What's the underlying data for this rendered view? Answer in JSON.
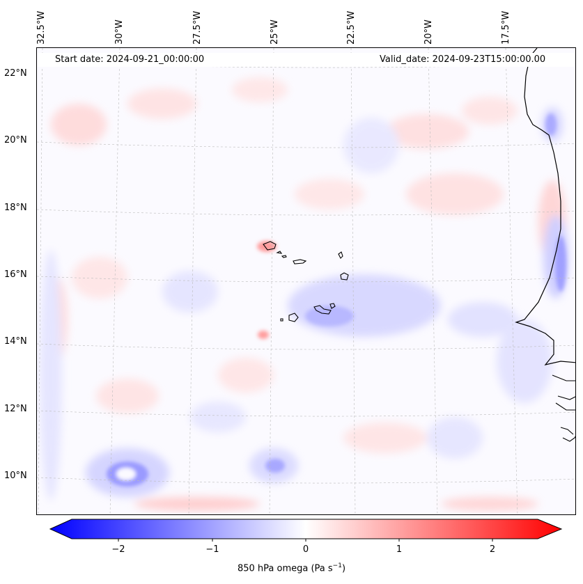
{
  "map": {
    "start_date": "Start date: 2024-09-21_00:00:00",
    "valid_date": "Valid_date: 2024-09-23T15:00:00.00",
    "lon_labels": [
      "32.5°W",
      "30°W",
      "27.5°W",
      "25°W",
      "22.5°W",
      "20°W",
      "17.5°W"
    ],
    "lat_labels": [
      "22°N",
      "20°N",
      "18°N",
      "16°N",
      "14°N",
      "12°N",
      "10°N"
    ],
    "field": "850 hPa omega",
    "projection": "conic (curved graticule)",
    "extent_lon": [
      -33,
      -16
    ],
    "extent_lat": [
      8.8,
      22.8
    ],
    "features": [
      "Cape Verde islands",
      "West African coastline (Mauritania, Senegal, Guinea-Bissau)"
    ],
    "notable_cells": [
      {
        "type": "strong ascent (negative omega)",
        "near": "10°N 30.5°W"
      },
      {
        "type": "ascent band",
        "near": "15°N 22°W"
      },
      {
        "type": "ascent along coast",
        "near": "17°N 17°W"
      },
      {
        "type": "descent (positive omega)",
        "near": "16.8°N 25°W"
      }
    ]
  },
  "colorbar": {
    "label": "850 hPa omega (Pa s",
    "label_sup": "−1",
    "label_end": ")",
    "ticks": [
      "−2",
      "−1",
      "0",
      "1",
      "2"
    ],
    "range": [
      -2.7,
      2.7
    ],
    "colors": {
      "min": "#0000ff",
      "mid": "#ffffff",
      "max": "#ff0000"
    },
    "extend": "both"
  }
}
